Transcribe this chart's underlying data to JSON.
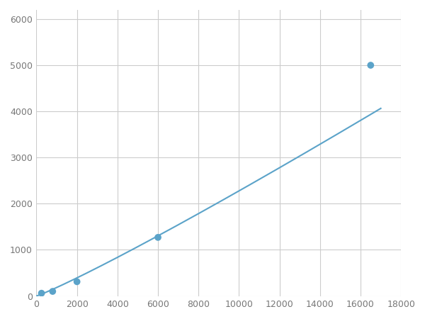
{
  "x": [
    250,
    800,
    2000,
    6000,
    16500
  ],
  "y": [
    60,
    100,
    310,
    1270,
    5000
  ],
  "line_color": "#5ba3c9",
  "marker_color": "#5ba3c9",
  "marker_size": 7,
  "line_width": 1.5,
  "xlim": [
    0,
    18000
  ],
  "ylim": [
    0,
    6200
  ],
  "xticks": [
    0,
    2000,
    4000,
    6000,
    8000,
    10000,
    12000,
    14000,
    16000,
    18000
  ],
  "yticks": [
    0,
    1000,
    2000,
    3000,
    4000,
    5000,
    6000
  ],
  "grid_color": "#cccccc",
  "background_color": "#ffffff",
  "tick_label_color": "#777777",
  "tick_fontsize": 9
}
